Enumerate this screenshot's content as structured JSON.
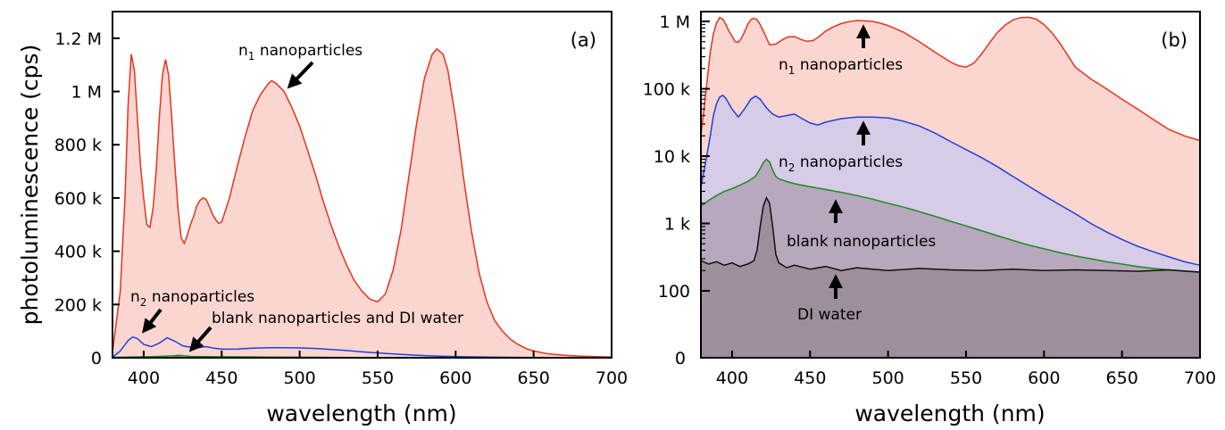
{
  "colors": {
    "n1": "#e8321c",
    "n1_fill": "#fbd6d0",
    "n2": "#2040d8",
    "n2_fill_log": "#d6cce8",
    "blank": "#1e8a1e",
    "blank_fill_log": "#b7a8bd",
    "water": "#111111",
    "water_fill_log": "#9d8f9b"
  },
  "chart_data": [
    {
      "type": "area",
      "panel_label": "(a)",
      "xlabel": "wavelength (nm)",
      "ylabel": "photoluminescence (cps)",
      "xlim": [
        380,
        700
      ],
      "ylim": [
        0,
        1300000
      ],
      "y_scale": "linear",
      "grid": false,
      "x_ticks": [
        400,
        450,
        500,
        550,
        600,
        650,
        700
      ],
      "x_tick_labels": [
        "400",
        "450",
        "500",
        "550",
        "600",
        "650",
        "700"
      ],
      "y_ticks": [
        0,
        200000,
        400000,
        600000,
        800000,
        1000000,
        1200000
      ],
      "y_tick_labels": [
        "0",
        "200 k",
        "400 k",
        "600 k",
        "800 k",
        "1 M",
        "1.2 M"
      ],
      "series": [
        {
          "key": "n1",
          "x": [
            380,
            385,
            388,
            390,
            392,
            394,
            396,
            398,
            400,
            402,
            404,
            406,
            408,
            410,
            412,
            414,
            416,
            418,
            420,
            422,
            424,
            426,
            428,
            430,
            432,
            434,
            436,
            438,
            440,
            442,
            444,
            446,
            448,
            450,
            455,
            460,
            465,
            470,
            475,
            480,
            482,
            485,
            490,
            495,
            500,
            505,
            510,
            515,
            520,
            525,
            530,
            535,
            540,
            545,
            550,
            555,
            560,
            565,
            570,
            575,
            580,
            585,
            588,
            590,
            592,
            595,
            600,
            605,
            610,
            615,
            620,
            625,
            630,
            635,
            640,
            645,
            650,
            660,
            670,
            680,
            690,
            700
          ],
          "y": [
            20000,
            250000,
            600000,
            950000,
            1140000,
            1080000,
            900000,
            720000,
            600000,
            500000,
            490000,
            560000,
            700000,
            900000,
            1060000,
            1120000,
            1060000,
            900000,
            720000,
            560000,
            450000,
            430000,
            460000,
            500000,
            530000,
            570000,
            590000,
            600000,
            595000,
            570000,
            540000,
            520000,
            505000,
            510000,
            600000,
            720000,
            830000,
            930000,
            990000,
            1030000,
            1040000,
            1030000,
            1000000,
            940000,
            870000,
            780000,
            690000,
            590000,
            500000,
            420000,
            350000,
            290000,
            250000,
            220000,
            210000,
            240000,
            330000,
            480000,
            680000,
            880000,
            1050000,
            1140000,
            1160000,
            1150000,
            1140000,
            1080000,
            900000,
            680000,
            480000,
            320000,
            210000,
            140000,
            100000,
            70000,
            50000,
            35000,
            25000,
            14000,
            9000,
            6000,
            4000,
            3000
          ]
        },
        {
          "key": "n2",
          "x": [
            380,
            385,
            390,
            393,
            396,
            400,
            405,
            410,
            415,
            420,
            425,
            430,
            435,
            440,
            445,
            450,
            460,
            470,
            480,
            490,
            500,
            510,
            520,
            530,
            540,
            550,
            560,
            570,
            580,
            590,
            600,
            610,
            620,
            640,
            660,
            680,
            700
          ],
          "y": [
            2000,
            25000,
            65000,
            78000,
            72000,
            50000,
            42000,
            55000,
            75000,
            62000,
            45000,
            40000,
            38000,
            42000,
            36000,
            32000,
            33000,
            36000,
            38000,
            38000,
            37000,
            35000,
            31000,
            27000,
            22000,
            18000,
            14000,
            11000,
            8000,
            6000,
            4500,
            3200,
            2300,
            1200,
            600,
            400,
            300
          ]
        },
        {
          "key": "blank",
          "x": [
            380,
            390,
            400,
            410,
            415,
            420,
            422,
            424,
            426,
            430,
            440,
            460,
            480,
            500,
            520,
            540,
            560,
            580,
            600,
            620,
            640,
            660,
            680,
            700
          ],
          "y": [
            1500,
            2500,
            3500,
            5000,
            6500,
            8000,
            9000,
            8500,
            7000,
            5000,
            4000,
            3200,
            2600,
            2000,
            1500,
            1100,
            800,
            600,
            450,
            350,
            280,
            230,
            200,
            190
          ]
        },
        {
          "key": "water",
          "x": [
            380,
            410,
            418,
            422,
            424,
            428,
            440,
            500,
            560,
            620,
            700
          ],
          "y": [
            250,
            250,
            900,
            2200,
            1800,
            300,
            220,
            200,
            200,
            200,
            190
          ]
        }
      ],
      "annotations": [
        {
          "base": "n",
          "sub": "1",
          "rest": " nanoparticles"
        },
        {
          "base": "n",
          "sub": "2",
          "rest": " nanoparticles"
        },
        {
          "base": "blank nanoparticles and DI water",
          "sub": "",
          "rest": ""
        }
      ]
    },
    {
      "type": "area",
      "panel_label": "(b)",
      "xlabel": "wavelength (nm)",
      "ylabel": "",
      "xlim": [
        380,
        700
      ],
      "ylim": [
        10,
        1300000
      ],
      "y_scale": "log",
      "grid": false,
      "x_ticks": [
        400,
        450,
        500,
        550,
        600,
        650,
        700
      ],
      "x_tick_labels": [
        "400",
        "450",
        "500",
        "550",
        "600",
        "650",
        "700"
      ],
      "y_ticks": [
        100,
        1000,
        10000,
        100000,
        1000000
      ],
      "y_tick_labels": [
        "100",
        "1 k",
        "10 k",
        "100 k",
        "1 M"
      ],
      "y_zero_label": "0",
      "series": [
        {
          "key": "n1",
          "x": [
            380,
            383,
            386,
            388,
            390,
            392,
            394,
            396,
            398,
            400,
            402,
            404,
            406,
            408,
            410,
            412,
            414,
            416,
            418,
            420,
            424,
            428,
            432,
            436,
            440,
            444,
            448,
            452,
            456,
            460,
            465,
            470,
            475,
            480,
            485,
            490,
            495,
            500,
            510,
            520,
            530,
            540,
            545,
            550,
            555,
            560,
            565,
            570,
            575,
            580,
            585,
            590,
            595,
            600,
            605,
            610,
            615,
            620,
            630,
            640,
            650,
            660,
            670,
            680,
            690,
            700
          ],
          "y": [
            20000,
            80000,
            350000,
            650000,
            950000,
            1140000,
            1080000,
            900000,
            720000,
            600000,
            500000,
            490000,
            560000,
            700000,
            900000,
            1060000,
            1120000,
            1060000,
            900000,
            720000,
            450000,
            460000,
            530000,
            590000,
            595000,
            540000,
            505000,
            520000,
            600000,
            720000,
            830000,
            930000,
            990000,
            1030000,
            1020000,
            1000000,
            940000,
            870000,
            690000,
            500000,
            350000,
            250000,
            220000,
            210000,
            240000,
            330000,
            480000,
            680000,
            880000,
            1050000,
            1140000,
            1150000,
            1080000,
            900000,
            680000,
            480000,
            320000,
            210000,
            140000,
            100000,
            70000,
            50000,
            35000,
            25000,
            20000,
            17000
          ]
        },
        {
          "key": "n2",
          "x": [
            380,
            383,
            386,
            388,
            390,
            392,
            394,
            396,
            398,
            400,
            404,
            408,
            412,
            415,
            418,
            422,
            426,
            430,
            435,
            440,
            445,
            450,
            455,
            460,
            470,
            480,
            490,
            500,
            510,
            520,
            530,
            540,
            550,
            560,
            570,
            580,
            590,
            600,
            610,
            620,
            630,
            640,
            650,
            660,
            670,
            680,
            690,
            700
          ],
          "y": [
            3500,
            8000,
            20000,
            40000,
            60000,
            75000,
            80000,
            72000,
            60000,
            50000,
            38000,
            50000,
            70000,
            78000,
            70000,
            52000,
            42000,
            38000,
            40000,
            42000,
            36000,
            31000,
            29000,
            32000,
            36000,
            38000,
            38000,
            37000,
            33000,
            28000,
            22000,
            16500,
            12500,
            9500,
            7000,
            5000,
            3600,
            2600,
            1900,
            1400,
            1000,
            750,
            580,
            460,
            380,
            320,
            270,
            240
          ]
        },
        {
          "key": "blank",
          "x": [
            380,
            385,
            390,
            395,
            400,
            405,
            410,
            415,
            418,
            420,
            422,
            424,
            426,
            428,
            430,
            435,
            440,
            450,
            460,
            470,
            480,
            490,
            500,
            510,
            520,
            530,
            540,
            550,
            560,
            570,
            580,
            590,
            600,
            610,
            620,
            630,
            640,
            650,
            660,
            670,
            680,
            690,
            700
          ],
          "y": [
            1800,
            2200,
            2600,
            3000,
            3300,
            3700,
            4200,
            5000,
            6500,
            8000,
            9000,
            8200,
            6200,
            5000,
            4600,
            4200,
            3900,
            3500,
            3200,
            2900,
            2600,
            2300,
            2000,
            1750,
            1500,
            1280,
            1080,
            920,
            780,
            660,
            560,
            480,
            420,
            370,
            330,
            300,
            270,
            250,
            230,
            215,
            205,
            195,
            190
          ]
        },
        {
          "key": "water",
          "x": [
            380,
            385,
            390,
            395,
            400,
            405,
            410,
            414,
            416,
            418,
            420,
            422,
            424,
            426,
            428,
            430,
            435,
            440,
            450,
            460,
            470,
            480,
            490,
            500,
            520,
            540,
            560,
            580,
            600,
            620,
            640,
            660,
            680,
            700
          ],
          "y": [
            280,
            250,
            270,
            240,
            260,
            230,
            250,
            280,
            400,
            900,
            1800,
            2400,
            2000,
            900,
            350,
            260,
            220,
            240,
            210,
            230,
            200,
            220,
            210,
            200,
            215,
            205,
            200,
            210,
            200,
            205,
            200,
            195,
            205,
            190
          ]
        }
      ],
      "annotations": [
        {
          "base": "n",
          "sub": "1",
          "rest": " nanoparticles"
        },
        {
          "base": "n",
          "sub": "2",
          "rest": " nanoparticles"
        },
        {
          "base": "blank nanoparticles",
          "sub": "",
          "rest": ""
        },
        {
          "base": "DI water",
          "sub": "",
          "rest": ""
        }
      ]
    }
  ]
}
